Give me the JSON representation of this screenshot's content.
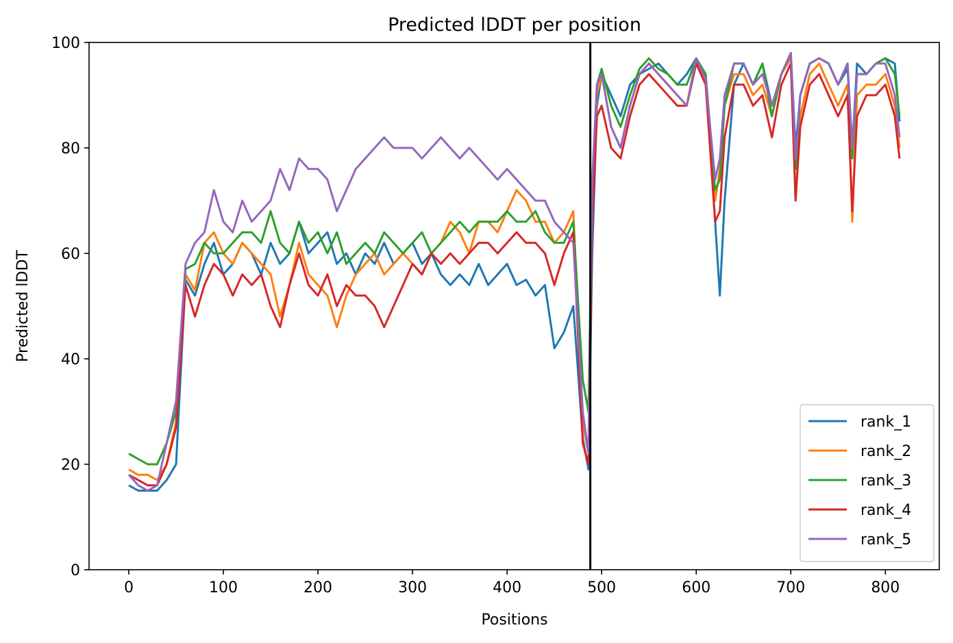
{
  "chart_data": {
    "type": "line",
    "title": "Predicted lDDT per position",
    "xlabel": "Positions",
    "ylabel": "Predicted lDDT",
    "xlim": [
      -42,
      857
    ],
    "ylim": [
      0,
      100
    ],
    "x_ticks": [
      0,
      100,
      200,
      300,
      400,
      500,
      600,
      700,
      800
    ],
    "y_ticks": [
      0,
      20,
      40,
      60,
      80,
      100
    ],
    "grid": false,
    "legend_position": "lower-right",
    "vline_x": 488,
    "vline_color": "#000000",
    "x": [
      0,
      10,
      20,
      30,
      40,
      50,
      60,
      70,
      80,
      90,
      100,
      110,
      120,
      130,
      140,
      150,
      160,
      170,
      180,
      190,
      200,
      210,
      220,
      230,
      240,
      250,
      260,
      270,
      280,
      290,
      300,
      310,
      320,
      330,
      340,
      350,
      360,
      370,
      380,
      390,
      400,
      410,
      420,
      430,
      440,
      450,
      460,
      470,
      480,
      486,
      490,
      495,
      500,
      510,
      520,
      530,
      540,
      550,
      560,
      570,
      580,
      590,
      600,
      610,
      620,
      625,
      630,
      640,
      650,
      660,
      670,
      680,
      690,
      700,
      705,
      710,
      720,
      730,
      740,
      750,
      760,
      765,
      770,
      780,
      790,
      800,
      810,
      815
    ],
    "series": [
      {
        "name": "rank_1",
        "color": "#1f77b4",
        "values": [
          16,
          15,
          15,
          15,
          17,
          20,
          55,
          52,
          58,
          62,
          56,
          58,
          62,
          60,
          56,
          62,
          58,
          60,
          66,
          60,
          62,
          64,
          58,
          60,
          56,
          60,
          58,
          62,
          58,
          60,
          62,
          58,
          60,
          56,
          54,
          56,
          54,
          58,
          54,
          56,
          58,
          54,
          55,
          52,
          54,
          42,
          45,
          50,
          25,
          19,
          60,
          88,
          94,
          90,
          86,
          92,
          94,
          95,
          96,
          94,
          92,
          94,
          97,
          94,
          66,
          52,
          70,
          92,
          96,
          92,
          96,
          88,
          94,
          98,
          80,
          90,
          96,
          97,
          96,
          92,
          95,
          80,
          96,
          94,
          96,
          97,
          96,
          85
        ]
      },
      {
        "name": "rank_2",
        "color": "#ff7f0e",
        "values": [
          19,
          18,
          18,
          17,
          20,
          28,
          56,
          53,
          62,
          64,
          60,
          58,
          62,
          60,
          58,
          56,
          48,
          54,
          62,
          56,
          54,
          52,
          46,
          52,
          56,
          58,
          60,
          56,
          58,
          60,
          58,
          56,
          60,
          62,
          66,
          64,
          60,
          66,
          66,
          64,
          68,
          72,
          70,
          66,
          66,
          62,
          64,
          68,
          28,
          22,
          70,
          90,
          94,
          84,
          80,
          88,
          94,
          96,
          94,
          92,
          90,
          88,
          97,
          92,
          70,
          76,
          88,
          94,
          94,
          90,
          92,
          86,
          94,
          97,
          70,
          86,
          94,
          96,
          92,
          88,
          92,
          66,
          90,
          92,
          92,
          94,
          88,
          80
        ]
      },
      {
        "name": "rank_3",
        "color": "#2ca02c",
        "values": [
          22,
          21,
          20,
          20,
          24,
          30,
          57,
          58,
          62,
          60,
          60,
          62,
          64,
          64,
          62,
          68,
          62,
          60,
          66,
          62,
          64,
          60,
          64,
          58,
          60,
          62,
          60,
          64,
          62,
          60,
          62,
          64,
          60,
          62,
          64,
          66,
          64,
          66,
          66,
          66,
          68,
          66,
          66,
          68,
          64,
          62,
          62,
          66,
          36,
          30,
          72,
          92,
          95,
          88,
          84,
          90,
          95,
          97,
          95,
          94,
          92,
          92,
          97,
          94,
          72,
          74,
          88,
          96,
          96,
          92,
          96,
          86,
          94,
          98,
          76,
          90,
          96,
          97,
          96,
          92,
          96,
          78,
          94,
          94,
          96,
          97,
          94,
          86
        ]
      },
      {
        "name": "rank_4",
        "color": "#d62728",
        "values": [
          18,
          17,
          16,
          16,
          20,
          27,
          54,
          48,
          54,
          58,
          56,
          52,
          56,
          54,
          56,
          50,
          46,
          54,
          60,
          54,
          52,
          56,
          50,
          54,
          52,
          52,
          50,
          46,
          50,
          54,
          58,
          56,
          60,
          58,
          60,
          58,
          60,
          62,
          62,
          60,
          62,
          64,
          62,
          62,
          60,
          54,
          60,
          64,
          24,
          20,
          66,
          86,
          88,
          80,
          78,
          86,
          92,
          94,
          92,
          90,
          88,
          88,
          96,
          92,
          66,
          68,
          82,
          92,
          92,
          88,
          90,
          82,
          92,
          96,
          70,
          84,
          92,
          94,
          90,
          86,
          90,
          68,
          86,
          90,
          90,
          92,
          86,
          78
        ]
      },
      {
        "name": "rank_5",
        "color": "#9467bd",
        "values": [
          18,
          16,
          15,
          16,
          24,
          32,
          58,
          62,
          64,
          72,
          66,
          64,
          70,
          66,
          68,
          70,
          76,
          72,
          78,
          76,
          76,
          74,
          68,
          72,
          76,
          78,
          80,
          82,
          80,
          80,
          80,
          78,
          80,
          82,
          80,
          78,
          80,
          78,
          76,
          74,
          76,
          74,
          72,
          70,
          70,
          66,
          64,
          62,
          30,
          22,
          74,
          92,
          94,
          84,
          80,
          88,
          94,
          96,
          94,
          92,
          90,
          88,
          97,
          93,
          74,
          78,
          90,
          96,
          96,
          92,
          94,
          88,
          94,
          98,
          78,
          90,
          96,
          97,
          96,
          92,
          96,
          80,
          94,
          94,
          96,
          96,
          90,
          82
        ]
      }
    ]
  }
}
